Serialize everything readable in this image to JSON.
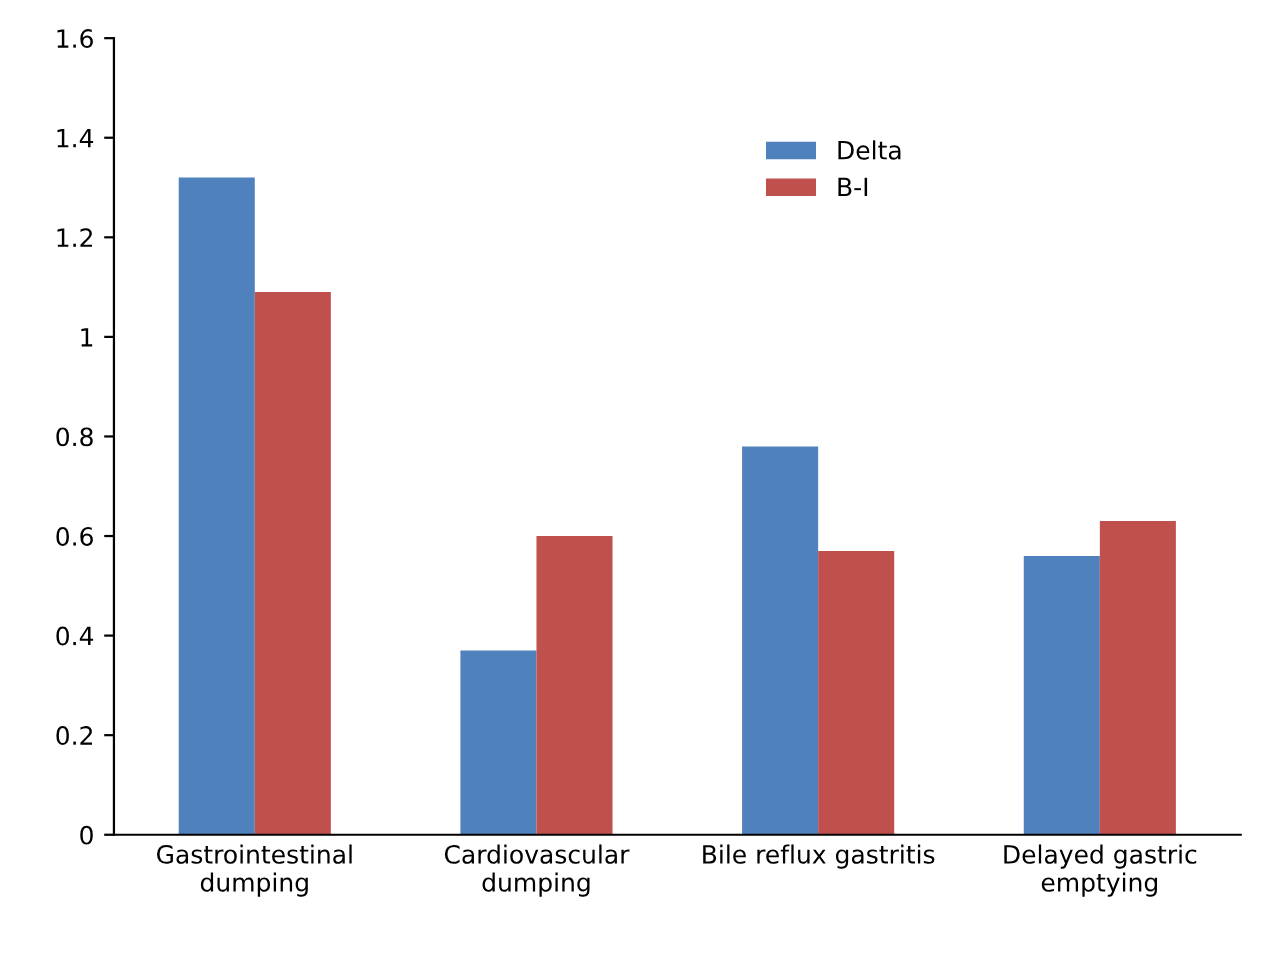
{
  "chart_data": {
    "type": "bar",
    "categories": [
      "Gastrointestinal\ndumping",
      "Cardiovascular\ndumping",
      "Bile reflux gastritis",
      "Delayed gastric\nemptying"
    ],
    "series": [
      {
        "name": "Delta",
        "color": "#4f81bd",
        "values": [
          1.32,
          0.37,
          0.78,
          0.56
        ]
      },
      {
        "name": "B-I",
        "color": "#c0504d",
        "values": [
          1.09,
          0.6,
          0.57,
          0.63
        ]
      }
    ],
    "ylim": [
      0,
      1.6
    ],
    "yticks": [
      0,
      0.2,
      0.4,
      0.6,
      0.8,
      1,
      1.2,
      1.4,
      1.6
    ],
    "grid": false,
    "legend": "top right"
  }
}
